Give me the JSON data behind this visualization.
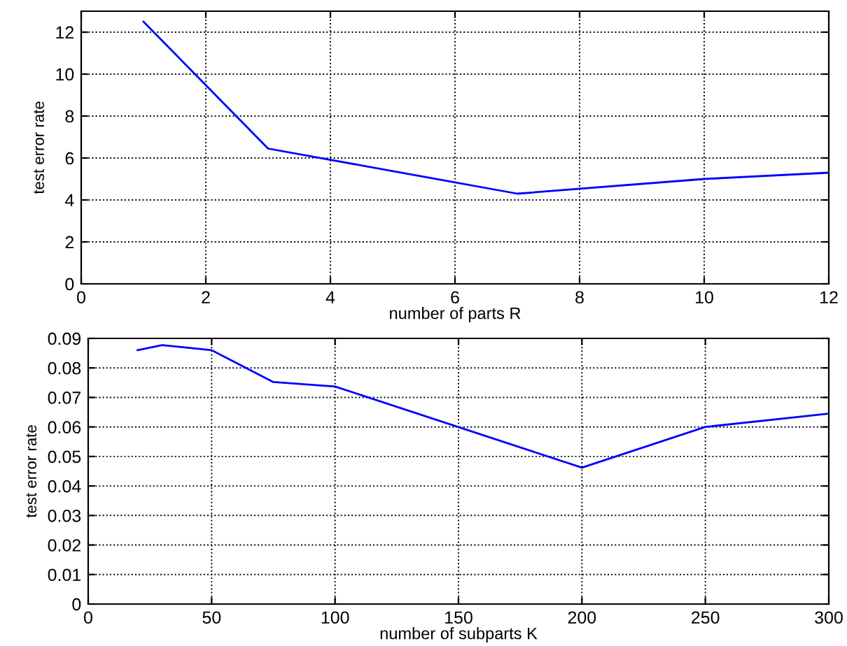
{
  "chart_data": [
    {
      "type": "line",
      "xlabel": "number of parts R",
      "ylabel": "test error rate",
      "x": [
        1,
        3,
        7,
        10,
        12
      ],
      "series": [
        {
          "color": "#0000ff",
          "values": [
            12.5,
            6.45,
            4.3,
            5.0,
            5.3
          ]
        }
      ],
      "xlim": [
        0,
        12
      ],
      "xticks": [
        0,
        2,
        4,
        6,
        8,
        10,
        12
      ],
      "ylim": [
        0,
        13
      ],
      "yticks": [
        0,
        2,
        4,
        6,
        8,
        10,
        12
      ],
      "grid": true,
      "marker": "none",
      "line_style": "solid"
    },
    {
      "type": "line",
      "xlabel": "number of subparts K",
      "ylabel": "test error rate",
      "x": [
        20,
        30,
        50,
        75,
        100,
        200,
        250,
        300
      ],
      "series": [
        {
          "color": "#0000ff",
          "values": [
            0.086,
            0.0877,
            0.086,
            0.0752,
            0.0737,
            0.0462,
            0.06,
            0.0645
          ]
        }
      ],
      "xlim": [
        0,
        300
      ],
      "xticks": [
        0,
        50,
        100,
        150,
        200,
        250,
        300
      ],
      "ylim": [
        0,
        0.09
      ],
      "yticks": [
        0,
        0.01,
        0.02,
        0.03,
        0.04,
        0.05,
        0.06,
        0.07,
        0.08,
        0.09
      ],
      "grid": true,
      "marker": "none",
      "line_style": "solid"
    }
  ]
}
